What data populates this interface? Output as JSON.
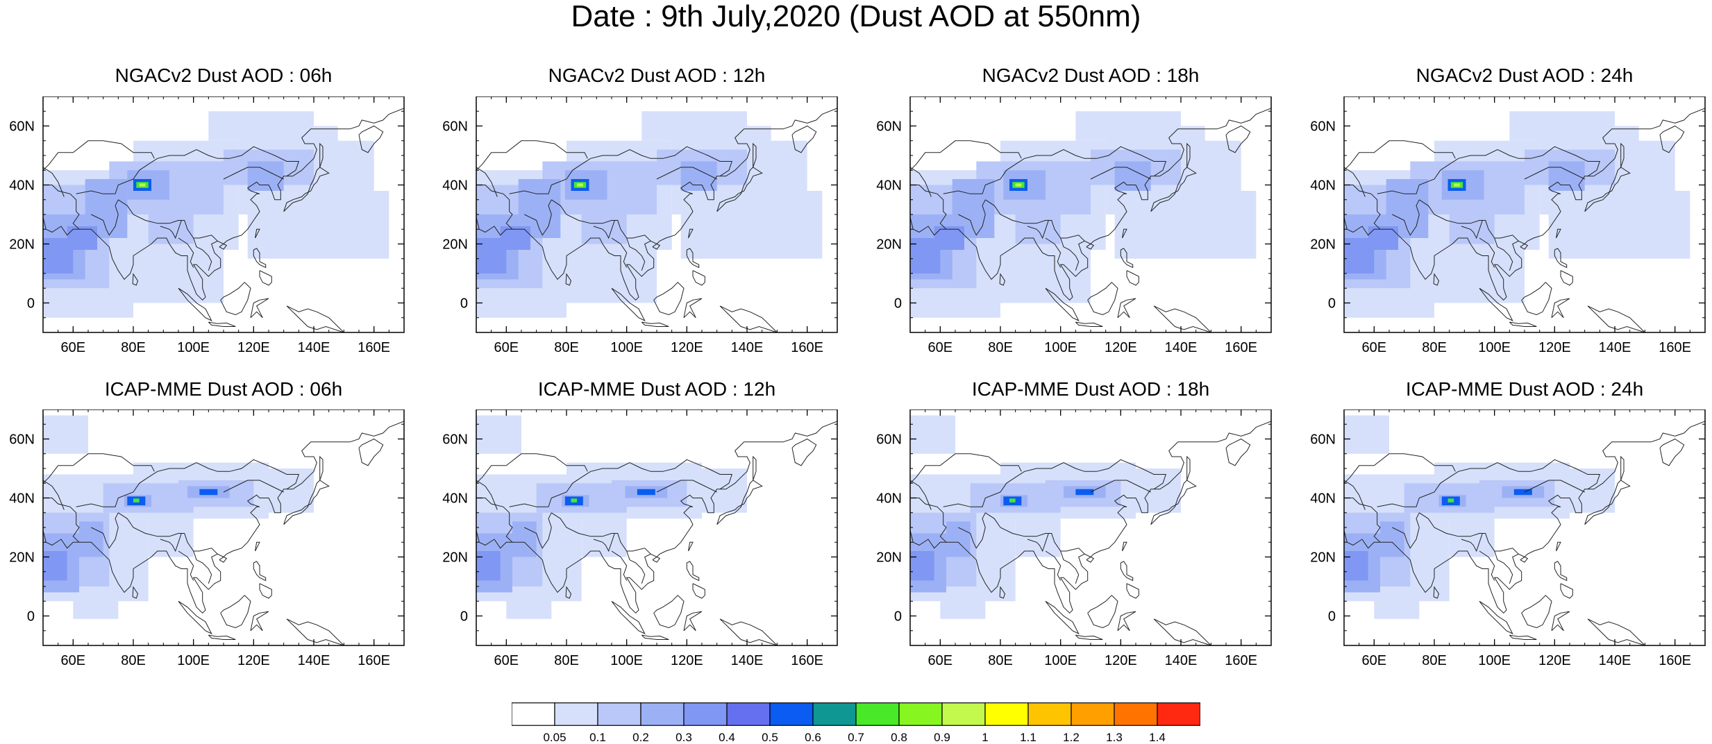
{
  "title": "Date : 9th July,2020 (Dust AOD at 550nm)",
  "panels": [
    {
      "title": "NGACv2 Dust AOD : 06h",
      "model": "NGACv2",
      "hour": "06h"
    },
    {
      "title": "NGACv2 Dust AOD : 12h",
      "model": "NGACv2",
      "hour": "12h"
    },
    {
      "title": "NGACv2 Dust AOD : 18h",
      "model": "NGACv2",
      "hour": "18h"
    },
    {
      "title": "NGACv2 Dust AOD : 24h",
      "model": "NGACv2",
      "hour": "24h"
    },
    {
      "title": "ICAP-MME Dust AOD : 06h",
      "model": "ICAP-MME",
      "hour": "06h"
    },
    {
      "title": "ICAP-MME Dust AOD : 12h",
      "model": "ICAP-MME",
      "hour": "12h"
    },
    {
      "title": "ICAP-MME Dust AOD : 18h",
      "model": "ICAP-MME",
      "hour": "18h"
    },
    {
      "title": "ICAP-MME Dust AOD : 24h",
      "model": "ICAP-MME",
      "hour": "24h"
    }
  ],
  "map": {
    "lon_range": [
      50,
      170
    ],
    "lat_range": [
      -10,
      70
    ],
    "lon_ticks": [
      "60E",
      "80E",
      "100E",
      "120E",
      "140E",
      "160E"
    ],
    "lat_ticks": [
      "60N",
      "40N",
      "20N",
      "0"
    ]
  },
  "colorbar": {
    "labels": [
      "0.05",
      "0.1",
      "0.2",
      "0.3",
      "0.4",
      "0.5",
      "0.6",
      "0.7",
      "0.8",
      "0.9",
      "1",
      "1.1",
      "1.2",
      "1.3",
      "1.4"
    ],
    "colors": [
      "#ffffff",
      "#d6e0fb",
      "#b9c8f8",
      "#9cb1f5",
      "#8097f3",
      "#6570f0",
      "#0b5cf0",
      "#0f9794",
      "#49e829",
      "#86f520",
      "#c3f84c",
      "#ffff00",
      "#ffc400",
      "#ff9f00",
      "#ff7300",
      "#ff2810"
    ]
  }
}
